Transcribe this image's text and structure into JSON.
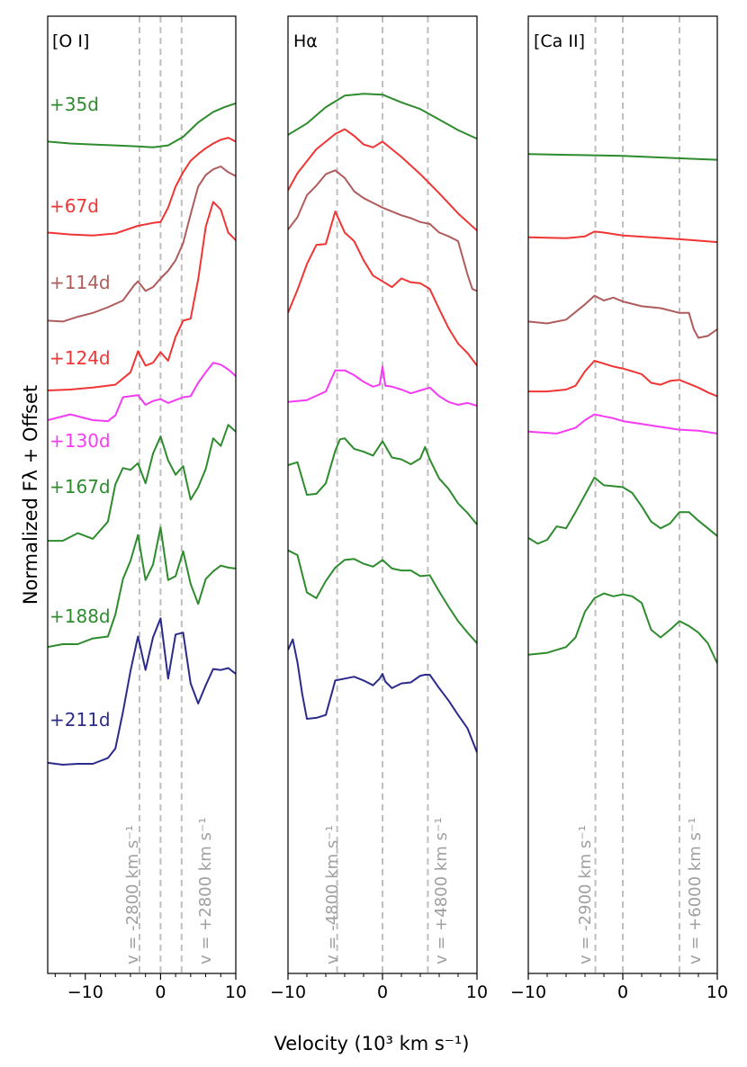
{
  "figure": {
    "ylabel": "Normalized Fλ + Offset",
    "xlabel": "Velocity (10³ km s⁻¹)"
  },
  "colors": {
    "green": "#2e8b2e",
    "red": "#f03535",
    "brown": "#b05c5c",
    "magenta": "#f53cf5",
    "navy": "#2b2b8c",
    "guide": "#bfbfbf"
  },
  "chart_data": [
    {
      "type": "line",
      "title": "[O I]",
      "xlim": [
        -15,
        10
      ],
      "ylim": [
        0,
        100
      ],
      "xticks": [
        -10,
        0,
        10
      ],
      "tick_labels": [
        "−10",
        "0",
        "10"
      ],
      "guides": [
        {
          "x": -2.8,
          "label": "v = -2800 km s⁻¹"
        },
        {
          "x": 0,
          "label": ""
        },
        {
          "x": 2.8,
          "label": "v = +2800 km s⁻¹"
        }
      ],
      "series": [
        {
          "name": "+35d",
          "color": "#2e8b2e",
          "x": [
            -15,
            -12,
            -9,
            -6,
            -3,
            -1,
            1,
            3,
            5,
            7,
            8.5,
            10
          ],
          "y": [
            86.9,
            86.7,
            86.6,
            86.5,
            86.4,
            86.3,
            86.5,
            87.4,
            88.9,
            90.0,
            90.5,
            90.9
          ]
        },
        {
          "name": "+67d",
          "color": "#f03535",
          "x": [
            -15,
            -12,
            -9,
            -6,
            -3,
            -1,
            0,
            1,
            2,
            3,
            4,
            5,
            6,
            7,
            8,
            9,
            10
          ],
          "y": [
            77.4,
            77.2,
            77.1,
            77.3,
            78.1,
            78.4,
            78.5,
            80.0,
            82.2,
            83.7,
            84.9,
            85.6,
            86.2,
            86.7,
            87.1,
            87.3,
            86.9
          ]
        },
        {
          "name": "+114d",
          "color": "#b05c5c",
          "x": [
            -15,
            -13,
            -11,
            -9,
            -7,
            -5,
            -3.5,
            -3,
            -2,
            -1,
            0,
            1,
            2,
            3,
            4,
            5,
            6,
            7,
            8,
            9,
            10
          ],
          "y": [
            68.2,
            68.1,
            68.6,
            69.0,
            69.6,
            70.3,
            71.9,
            72.3,
            71.3,
            71.7,
            72.6,
            73.4,
            74.5,
            76.3,
            79.3,
            82.2,
            83.4,
            84.0,
            84.3,
            83.7,
            83.3
          ]
        },
        {
          "name": "+124d",
          "color": "#f03535",
          "x": [
            -15,
            -12,
            -9,
            -6,
            -4,
            -3,
            -2,
            -1,
            0,
            1,
            2,
            3,
            4,
            5,
            6,
            7,
            8,
            9,
            10
          ],
          "y": [
            60.9,
            61.0,
            61.2,
            61.5,
            62.8,
            65.0,
            63.5,
            63.8,
            64.9,
            64.0,
            66.5,
            68.2,
            68.4,
            72.5,
            78.0,
            80.6,
            79.8,
            77.4,
            76.6
          ]
        },
        {
          "name": "+130d",
          "color": "#f53cf5",
          "x": [
            -15,
            -12,
            -9,
            -7,
            -6,
            -5,
            -3,
            -2,
            -1,
            0,
            1,
            2,
            3,
            4,
            5,
            6,
            7,
            8,
            9,
            10
          ],
          "y": [
            57.8,
            58.4,
            57.8,
            57.7,
            58.3,
            60.2,
            60.4,
            59.4,
            59.8,
            60.0,
            59.6,
            59.9,
            60.2,
            60.3,
            61.7,
            62.8,
            63.8,
            63.6,
            63.1,
            62.4
          ]
        },
        {
          "name": "+167d",
          "color": "#2e8b2e",
          "x": [
            -15,
            -13,
            -11,
            -9,
            -7,
            -6,
            -5,
            -4,
            -3,
            -2,
            -1,
            0,
            1,
            2,
            3,
            4,
            5,
            6,
            7,
            8,
            9,
            10
          ],
          "y": [
            45.2,
            45.2,
            46.0,
            45.4,
            47.2,
            51.1,
            52.8,
            52.6,
            53.3,
            51.2,
            54.3,
            56.1,
            53.6,
            52.1,
            53.0,
            49.5,
            50.8,
            52.7,
            55.9,
            55.1,
            57.3,
            56.6
          ]
        },
        {
          "name": "+188d",
          "color": "#2e8b2e",
          "x": [
            -15,
            -13,
            -11,
            -9,
            -7,
            -6,
            -5,
            -4,
            -3,
            -2,
            -1,
            0,
            1,
            2,
            3,
            4,
            5,
            6,
            7,
            8,
            9,
            10
          ],
          "y": [
            34.1,
            34.4,
            34.4,
            35.0,
            35.2,
            37.5,
            41.2,
            43.1,
            45.8,
            41.1,
            42.7,
            46.6,
            41.1,
            41.5,
            44.1,
            40.7,
            38.6,
            41.2,
            42.0,
            42.6,
            42.4,
            42.3
          ]
        },
        {
          "name": "+211d",
          "color": "#2b2b8c",
          "x": [
            -15,
            -13,
            -11,
            -9,
            -7,
            -6,
            -5,
            -4,
            -3,
            -2,
            -1,
            0,
            1,
            2,
            3,
            4,
            5,
            6,
            7,
            8,
            9,
            10
          ],
          "y": [
            22.0,
            21.8,
            21.9,
            21.9,
            22.5,
            23.5,
            27.3,
            31.6,
            35.2,
            31.7,
            35.1,
            37.1,
            30.8,
            35.4,
            35.6,
            30.3,
            28.2,
            30.1,
            31.8,
            31.7,
            31.9,
            31.3
          ]
        }
      ],
      "annotations": [
        "+35d",
        "+67d",
        "+114d",
        "+124d",
        "+130d",
        "+167d",
        "+188d",
        "+211d"
      ]
    },
    {
      "type": "line",
      "title": "Hα",
      "xlim": [
        -10,
        10
      ],
      "ylim": [
        0,
        100
      ],
      "xticks": [
        -10,
        0,
        10
      ],
      "tick_labels": [
        "−10",
        "0",
        "10"
      ],
      "guides": [
        {
          "x": -4.8,
          "label": "v = -4800 km s⁻¹"
        },
        {
          "x": 0,
          "label": ""
        },
        {
          "x": 4.8,
          "label": "v = +4800 km s⁻¹"
        }
      ],
      "series": [
        {
          "name": "+35d",
          "color": "#2e8b2e",
          "x": [
            -10,
            -8,
            -6,
            -4,
            -2,
            0,
            2,
            4,
            6,
            8,
            10
          ],
          "y": [
            87.6,
            88.8,
            90.5,
            91.7,
            91.9,
            91.8,
            91.0,
            90.3,
            89.2,
            88.1,
            87.2
          ]
        },
        {
          "name": "+67d",
          "color": "#f03535",
          "x": [
            -10,
            -9,
            -7,
            -5,
            -4,
            -3,
            -2,
            -1,
            0,
            2,
            4,
            6,
            8,
            10
          ],
          "y": [
            81.8,
            83.6,
            86.1,
            87.7,
            88.2,
            87.5,
            86.6,
            86.3,
            86.9,
            85.3,
            83.5,
            81.5,
            79.4,
            77.6
          ]
        },
        {
          "name": "+114d",
          "color": "#b05c5c",
          "x": [
            -10,
            -9,
            -8,
            -7,
            -6,
            -5,
            -4,
            -3,
            -2,
            -1,
            0,
            1,
            2,
            3,
            4,
            5,
            6,
            7,
            8,
            9,
            9.5,
            10
          ],
          "y": [
            77.7,
            79.0,
            81.3,
            82.3,
            83.5,
            83.9,
            83.1,
            81.7,
            81.0,
            80.5,
            80.0,
            79.6,
            79.2,
            78.9,
            78.5,
            78.3,
            77.4,
            77.0,
            76.5,
            73.0,
            71.5,
            71.3
          ]
        },
        {
          "name": "+124d",
          "color": "#f03535",
          "x": [
            -10,
            -9,
            -8,
            -7,
            -6,
            -5,
            -4.5,
            -4,
            -3,
            -2,
            -1,
            0,
            1,
            2,
            3,
            4,
            5,
            6,
            7,
            8,
            9,
            10
          ],
          "y": [
            69.0,
            71.4,
            74.1,
            76.1,
            76.2,
            79.6,
            78.5,
            77.4,
            76.5,
            74.5,
            72.9,
            72.3,
            71.7,
            72.6,
            72.2,
            72.1,
            71.5,
            69.4,
            67.4,
            65.8,
            64.8,
            63.5
          ]
        },
        {
          "name": "+130d",
          "color": "#f53cf5",
          "x": [
            -10,
            -8,
            -6,
            -5,
            -4,
            -3,
            -2,
            -1,
            -0.3,
            0,
            0.3,
            1,
            2,
            3,
            4,
            5,
            6,
            7,
            8,
            9,
            10
          ],
          "y": [
            59.7,
            59.9,
            60.8,
            63.0,
            63.0,
            62.5,
            61.8,
            61.3,
            61.5,
            63.4,
            61.4,
            61.3,
            61.0,
            60.6,
            60.9,
            61.2,
            60.3,
            59.7,
            59.4,
            59.6,
            59.3
          ]
        },
        {
          "name": "+167d",
          "color": "#2e8b2e",
          "x": [
            -10,
            -9,
            -8,
            -7,
            -6,
            -5,
            -4.5,
            -4,
            -3,
            -2,
            -1,
            0,
            1,
            2,
            3,
            4,
            4.5,
            5,
            6,
            7,
            8,
            9,
            10
          ],
          "y": [
            53.1,
            53.4,
            50.0,
            50.1,
            51.2,
            54.6,
            55.8,
            55.9,
            54.8,
            54.5,
            54.1,
            55.6,
            53.9,
            53.7,
            53.2,
            53.8,
            55.0,
            53.7,
            51.7,
            50.6,
            49.1,
            48.1,
            46.9
          ]
        },
        {
          "name": "+188d",
          "color": "#2e8b2e",
          "x": [
            -10,
            -9,
            -8,
            -7,
            -6,
            -5,
            -4,
            -3,
            -2,
            -1,
            0,
            1,
            2,
            3,
            4,
            5,
            6,
            7,
            8,
            9,
            10
          ],
          "y": [
            44.2,
            43.7,
            39.8,
            39.2,
            41.0,
            42.4,
            43.2,
            43.3,
            42.8,
            42.5,
            43.2,
            42.3,
            42.1,
            42.1,
            41.5,
            41.6,
            39.9,
            38.3,
            36.8,
            35.6,
            34.5
          ]
        },
        {
          "name": "+211d",
          "color": "#2b2b8c",
          "x": [
            -10,
            -9.5,
            -9,
            -8.5,
            -8,
            -7,
            -6,
            -5,
            -4,
            -3,
            -2,
            -1,
            -0.3,
            0,
            0.3,
            1,
            2,
            3,
            4,
            4.5,
            5,
            6,
            7,
            8,
            9,
            10
          ],
          "y": [
            33.8,
            34.9,
            32.5,
            29.2,
            26.6,
            26.7,
            27.0,
            30.6,
            30.8,
            31.0,
            30.6,
            30.1,
            30.8,
            31.3,
            30.5,
            29.8,
            30.3,
            30.4,
            31.1,
            31.2,
            31.2,
            29.8,
            28.5,
            27.0,
            25.6,
            23.1
          ]
        }
      ]
    },
    {
      "type": "line",
      "title": "[Ca II]",
      "xlim": [
        -10,
        10
      ],
      "ylim": [
        0,
        100
      ],
      "xticks": [
        -10,
        0,
        10
      ],
      "tick_labels": [
        "−10",
        "0",
        "10"
      ],
      "guides": [
        {
          "x": -2.9,
          "label": "v = -2900 km s⁻¹"
        },
        {
          "x": 0,
          "label": ""
        },
        {
          "x": 6.0,
          "label": "v = +6000 km s⁻¹"
        }
      ],
      "series": [
        {
          "name": "+35d",
          "color": "#2e8b2e",
          "x": [
            -10,
            -5,
            0,
            5,
            10
          ],
          "y": [
            85.6,
            85.5,
            85.4,
            85.2,
            85.0
          ]
        },
        {
          "name": "+67d",
          "color": "#f03535",
          "x": [
            -10,
            -6,
            -4,
            -3,
            -2,
            0,
            3,
            6,
            10
          ],
          "y": [
            76.9,
            76.8,
            77.0,
            77.5,
            77.4,
            77.1,
            76.9,
            76.7,
            76.4
          ]
        },
        {
          "name": "+114d",
          "color": "#b05c5c",
          "x": [
            -10,
            -8,
            -6,
            -4,
            -3,
            -2,
            -1,
            0,
            2,
            4,
            6,
            7,
            7.5,
            8,
            9,
            10
          ],
          "y": [
            68.1,
            67.9,
            68.3,
            69.9,
            70.8,
            70.3,
            70.6,
            70.2,
            69.7,
            69.5,
            69.0,
            69.0,
            67.3,
            66.4,
            66.6,
            67.3
          ]
        },
        {
          "name": "+124d",
          "color": "#f03535",
          "x": [
            -10,
            -8,
            -6,
            -5,
            -4,
            -3,
            -2,
            -1,
            0,
            1,
            2,
            3,
            4,
            5,
            6,
            7,
            8,
            9,
            10
          ],
          "y": [
            60.8,
            60.8,
            61.0,
            61.4,
            62.9,
            64.0,
            63.7,
            63.4,
            63.2,
            62.9,
            62.6,
            61.7,
            61.5,
            61.9,
            62.0,
            61.6,
            61.2,
            60.7,
            60.3
          ]
        },
        {
          "name": "+130d",
          "color": "#f53cf5",
          "x": [
            -10,
            -7,
            -5,
            -4,
            -3,
            -2,
            -1,
            0,
            2,
            4,
            6,
            8,
            10
          ],
          "y": [
            56.6,
            56.4,
            57.0,
            57.8,
            58.4,
            58.2,
            58.0,
            57.7,
            57.4,
            57.1,
            56.8,
            56.7,
            56.4
          ]
        },
        {
          "name": "+167d",
          "color": "#2e8b2e",
          "x": [
            -10,
            -9,
            -8,
            -7,
            -6,
            -5,
            -4,
            -3,
            -2,
            -1,
            0,
            1,
            2,
            3,
            4,
            5,
            6,
            7,
            8,
            9,
            10
          ],
          "y": [
            45.5,
            44.9,
            45.3,
            46.7,
            46.5,
            48.2,
            50.0,
            51.8,
            51.0,
            50.9,
            50.8,
            50.2,
            48.8,
            47.2,
            46.5,
            47.0,
            48.2,
            48.2,
            47.3,
            46.5,
            45.7
          ]
        },
        {
          "name": "+188d",
          "color": "#2e8b2e",
          "x": [
            -10,
            -8,
            -6,
            -5,
            -4,
            -3,
            -2,
            -1,
            0,
            1,
            2,
            3,
            4,
            5,
            6,
            7,
            8,
            9,
            10
          ],
          "y": [
            33.3,
            33.5,
            34.1,
            35.1,
            37.8,
            39.2,
            39.7,
            39.4,
            39.6,
            39.4,
            38.7,
            35.9,
            35.1,
            35.9,
            36.8,
            36.3,
            35.6,
            34.5,
            32.4
          ]
        }
      ]
    }
  ]
}
